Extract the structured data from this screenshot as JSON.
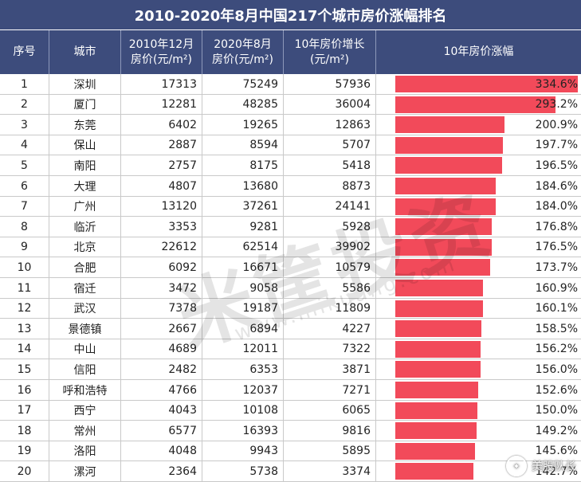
{
  "title": "2010-2020年8月中国217个城市房价涨幅排名",
  "headers": {
    "idx": "序号",
    "city": "城市",
    "p2010": "2010年12月\n房价(元/m²)",
    "p2020": "2020年8月\n房价(元/m²)",
    "inc": "10年房价增长\n(元/m²)",
    "growth": "10年房价涨幅"
  },
  "watermark": {
    "text": "米筐投资",
    "subtext": "www.mikuang.com"
  },
  "corner": {
    "label": "美股队长"
  },
  "colors": {
    "header_bg": "#3d4c7c",
    "bar": "#f24a5a"
  },
  "chart_data": {
    "type": "table",
    "columns": [
      "序号",
      "城市",
      "2010年12月房价(元/m²)",
      "2020年8月房价(元/m²)",
      "10年房价增长(元/m²)",
      "10年房价涨幅"
    ],
    "rows": [
      {
        "idx": "1",
        "city": "深圳",
        "p2010": "17313",
        "p2020": "75249",
        "inc": "57936",
        "growth": "334.6%",
        "growth_value": 334.6
      },
      {
        "idx": "2",
        "city": "厦门",
        "p2010": "12281",
        "p2020": "48285",
        "inc": "36004",
        "growth": "293.2%",
        "growth_value": 293.2
      },
      {
        "idx": "3",
        "city": "东莞",
        "p2010": "6402",
        "p2020": "19265",
        "inc": "12863",
        "growth": "200.9%",
        "growth_value": 200.9
      },
      {
        "idx": "4",
        "city": "保山",
        "p2010": "2887",
        "p2020": "8594",
        "inc": "5707",
        "growth": "197.7%",
        "growth_value": 197.7
      },
      {
        "idx": "5",
        "city": "南阳",
        "p2010": "2757",
        "p2020": "8175",
        "inc": "5418",
        "growth": "196.5%",
        "growth_value": 196.5
      },
      {
        "idx": "6",
        "city": "大理",
        "p2010": "4807",
        "p2020": "13680",
        "inc": "8873",
        "growth": "184.6%",
        "growth_value": 184.6
      },
      {
        "idx": "7",
        "city": "广州",
        "p2010": "13120",
        "p2020": "37261",
        "inc": "24141",
        "growth": "184.0%",
        "growth_value": 184.0
      },
      {
        "idx": "8",
        "city": "临沂",
        "p2010": "3353",
        "p2020": "9281",
        "inc": "5928",
        "growth": "176.8%",
        "growth_value": 176.8
      },
      {
        "idx": "9",
        "city": "北京",
        "p2010": "22612",
        "p2020": "62514",
        "inc": "39902",
        "growth": "176.5%",
        "growth_value": 176.5
      },
      {
        "idx": "10",
        "city": "合肥",
        "p2010": "6092",
        "p2020": "16671",
        "inc": "10579",
        "growth": "173.7%",
        "growth_value": 173.7
      },
      {
        "idx": "11",
        "city": "宿迁",
        "p2010": "3472",
        "p2020": "9058",
        "inc": "5586",
        "growth": "160.9%",
        "growth_value": 160.9
      },
      {
        "idx": "12",
        "city": "武汉",
        "p2010": "7378",
        "p2020": "19187",
        "inc": "11809",
        "growth": "160.1%",
        "growth_value": 160.1
      },
      {
        "idx": "13",
        "city": "景德镇",
        "p2010": "2667",
        "p2020": "6894",
        "inc": "4227",
        "growth": "158.5%",
        "growth_value": 158.5
      },
      {
        "idx": "14",
        "city": "中山",
        "p2010": "4689",
        "p2020": "12011",
        "inc": "7322",
        "growth": "156.2%",
        "growth_value": 156.2
      },
      {
        "idx": "15",
        "city": "信阳",
        "p2010": "2482",
        "p2020": "6353",
        "inc": "3871",
        "growth": "156.0%",
        "growth_value": 156.0
      },
      {
        "idx": "16",
        "city": "呼和浩特",
        "p2010": "4766",
        "p2020": "12037",
        "inc": "7271",
        "growth": "152.6%",
        "growth_value": 152.6
      },
      {
        "idx": "17",
        "city": "西宁",
        "p2010": "4043",
        "p2020": "10108",
        "inc": "6065",
        "growth": "150.0%",
        "growth_value": 150.0
      },
      {
        "idx": "18",
        "city": "常州",
        "p2010": "6577",
        "p2020": "16393",
        "inc": "9816",
        "growth": "149.2%",
        "growth_value": 149.2
      },
      {
        "idx": "19",
        "city": "洛阳",
        "p2010": "4048",
        "p2020": "9943",
        "inc": "5895",
        "growth": "145.6%",
        "growth_value": 145.6
      },
      {
        "idx": "20",
        "city": "漯河",
        "p2010": "2364",
        "p2020": "5738",
        "inc": "3374",
        "growth": "142.7%",
        "growth_value": 142.7
      }
    ]
  }
}
